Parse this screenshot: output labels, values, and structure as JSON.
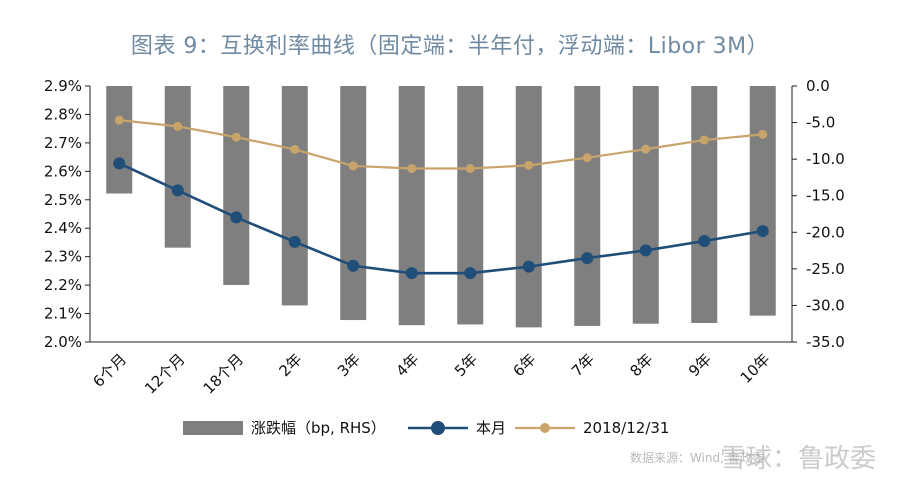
{
  "chart_data": {
    "type": "bar+line",
    "title": "图表 9：互换利率曲线（固定端：半年付，浮动端：Libor 3M）",
    "categories": [
      "6个月",
      "12个月",
      "18个月",
      "2年",
      "3年",
      "4年",
      "5年",
      "6年",
      "7年",
      "8年",
      "9年",
      "10年"
    ],
    "series": [
      {
        "name": "涨跌幅（bp, RHS）",
        "kind": "bar",
        "axis": "right",
        "color": "#7f7f7f",
        "values": [
          -14.7,
          -22.1,
          -27.2,
          -30.0,
          -32.0,
          -32.7,
          -32.6,
          -33.0,
          -32.8,
          -32.5,
          -32.4,
          -31.4
        ]
      },
      {
        "name": "本月",
        "kind": "line",
        "axis": "left",
        "color": "#1f4e79",
        "values": [
          2.628,
          2.533,
          2.438,
          2.352,
          2.268,
          2.242,
          2.242,
          2.265,
          2.295,
          2.322,
          2.355,
          2.39
        ]
      },
      {
        "name": "2018/12/31",
        "kind": "line",
        "axis": "left",
        "color": "#c9a46a",
        "values": [
          2.78,
          2.758,
          2.72,
          2.677,
          2.619,
          2.61,
          2.61,
          2.621,
          2.648,
          2.678,
          2.71,
          2.73
        ]
      }
    ],
    "ylim_left": [
      2.0,
      2.9
    ],
    "yticks_left": [
      "2.0%",
      "2.1%",
      "2.2%",
      "2.3%",
      "2.4%",
      "2.5%",
      "2.6%",
      "2.7%",
      "2.8%",
      "2.9%"
    ],
    "ylim_right": [
      -35,
      0
    ],
    "yticks_right": [
      "-35.0",
      "-30.0",
      "-25.0",
      "-20.0",
      "-15.0",
      "-10.0",
      "-5.0",
      "0.0"
    ],
    "legend_position": "bottom",
    "grid": false
  },
  "watermark": {
    "source": "数据来源：Wind, 鲁政委",
    "brand": "雪球：鲁政委"
  }
}
